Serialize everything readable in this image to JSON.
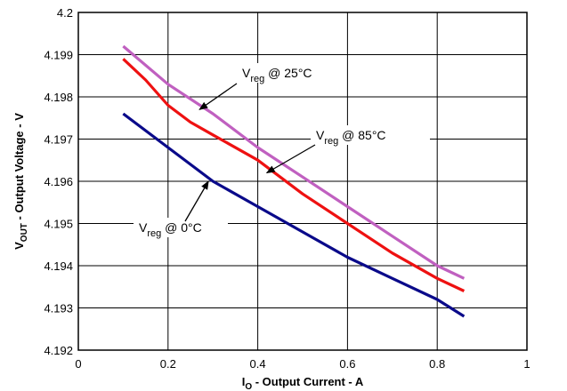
{
  "chart_data": {
    "type": "line",
    "title": "",
    "xlabel": {
      "main": "I",
      "sub": "O",
      "rest": " - Output Current - A"
    },
    "ylabel": {
      "main": "V",
      "sub": "OUT",
      "rest": " - Output Voltage - V"
    },
    "xlim": [
      0,
      1
    ],
    "ylim": [
      4.192,
      4.2
    ],
    "x_ticks": [
      "0",
      "0.2",
      "0.4",
      "0.6",
      "0.8",
      "1"
    ],
    "y_ticks": [
      "4.192",
      "4.193",
      "4.194",
      "4.195",
      "4.196",
      "4.197",
      "4.198",
      "4.199",
      "4.2"
    ],
    "x_tick_values": [
      0,
      0.2,
      0.4,
      0.6,
      0.8,
      1
    ],
    "y_tick_values": [
      4.192,
      4.193,
      4.194,
      4.195,
      4.196,
      4.197,
      4.198,
      4.199,
      4.2
    ],
    "grid": true,
    "series": [
      {
        "name_main": "V",
        "name_sub": "reg",
        "name_rest": " @ 25°C",
        "color": "#c060c0",
        "x": [
          0.1,
          0.2,
          0.3,
          0.4,
          0.5,
          0.6,
          0.7,
          0.8,
          0.86
        ],
        "y": [
          4.1992,
          4.1983,
          4.1976,
          4.1968,
          4.1961,
          4.1954,
          4.1947,
          4.194,
          4.1937
        ]
      },
      {
        "name_main": "V",
        "name_sub": "reg",
        "name_rest": " @ 85°C",
        "color": "#ee1111",
        "x": [
          0.1,
          0.15,
          0.2,
          0.25,
          0.3,
          0.4,
          0.5,
          0.6,
          0.7,
          0.8,
          0.86
        ],
        "y": [
          4.1989,
          4.1984,
          4.1978,
          4.1974,
          4.1971,
          4.1965,
          4.1957,
          4.195,
          4.1943,
          4.1937,
          4.1934
        ]
      },
      {
        "name_main": "V",
        "name_sub": "reg",
        "name_rest": " @ 0°C",
        "color": "#0a0a8a",
        "x": [
          0.1,
          0.2,
          0.3,
          0.4,
          0.5,
          0.6,
          0.7,
          0.8,
          0.86
        ],
        "y": [
          4.1976,
          4.1968,
          4.196,
          4.1954,
          4.1948,
          4.1942,
          4.1937,
          4.1932,
          4.1928
        ]
      }
    ],
    "annotations": [
      {
        "series": 0,
        "point_x": 0.27,
        "point_y": 4.1977
      },
      {
        "series": 1,
        "point_x": 0.42,
        "point_y": 4.1962
      },
      {
        "series": 2,
        "point_x": 0.29,
        "point_y": 4.196
      }
    ]
  }
}
